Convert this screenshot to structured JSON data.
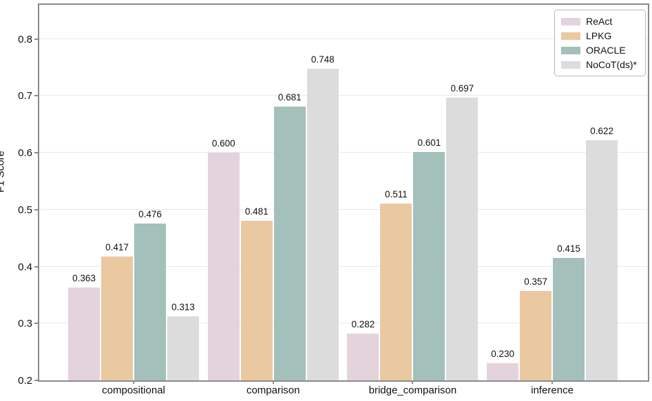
{
  "chart_data": {
    "type": "bar",
    "title": "",
    "xlabel": "",
    "ylabel": "F1 Score",
    "categories": [
      "compositional",
      "comparison",
      "bridge_comparison",
      "inference"
    ],
    "series": [
      {
        "name": "ReAct",
        "color": "#e4d3dd",
        "values": [
          0.363,
          0.6,
          0.282,
          0.23
        ]
      },
      {
        "name": "LPKG",
        "color": "#eac9a1",
        "values": [
          0.417,
          0.481,
          0.511,
          0.357
        ]
      },
      {
        "name": "ORACLE",
        "color": "#a4c0ba",
        "values": [
          0.476,
          0.681,
          0.601,
          0.415
        ]
      },
      {
        "name": "NoCoT(ds)*",
        "color": "#dcdcdc",
        "values": [
          0.313,
          0.748,
          0.697,
          0.622
        ]
      }
    ],
    "value_label_decimals": 3,
    "ylim": [
      0.2,
      0.86
    ],
    "yticks": [
      0.2,
      0.3,
      0.4,
      0.5,
      0.6,
      0.7,
      0.8
    ],
    "grid": true,
    "legend_position": "upper right"
  },
  "colors": {
    "grid": "#eaeaea",
    "spine": "#8a8a8a",
    "text": "#111111",
    "legend_border": "#b8b8b8"
  }
}
